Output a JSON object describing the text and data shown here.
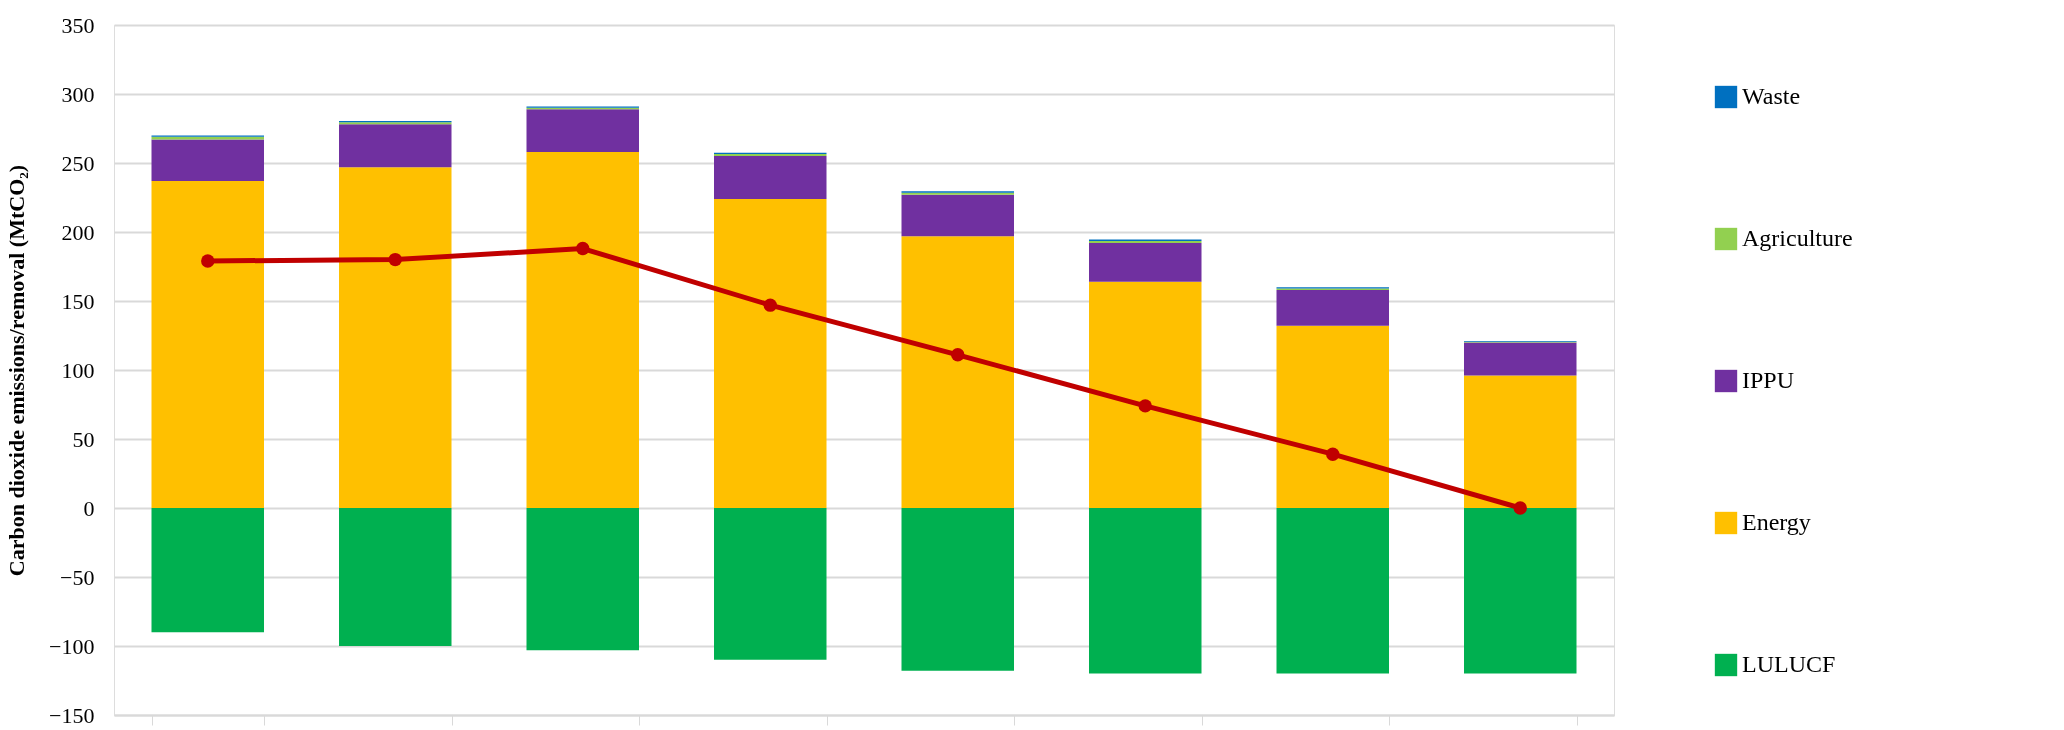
{
  "chart_data": {
    "type": "bar",
    "stacked": true,
    "ylabel": "Carbon dioxide emissions/removal (MtCO₂)",
    "categories": [
      null,
      null,
      null,
      null,
      null,
      null,
      null,
      null
    ],
    "ylim": [
      -150,
      350
    ],
    "yticks": [
      -150,
      -100,
      -50,
      0,
      50,
      100,
      150,
      200,
      250,
      300,
      350
    ],
    "grid": "y",
    "legend": "right",
    "tick_labels": "y",
    "series": [
      {
        "name": "LULUCF",
        "color": "#00b050",
        "values": [
          -90,
          -100,
          -103,
          -110,
          -118,
          -120,
          -120,
          -120
        ]
      },
      {
        "name": "Energy",
        "color": "#ffc000",
        "values": [
          237,
          247,
          258,
          224,
          197,
          164,
          132,
          96
        ]
      },
      {
        "name": "IPPU",
        "color": "#7030a0",
        "values": [
          30,
          31,
          31,
          31,
          30,
          28,
          26,
          24
        ]
      },
      {
        "name": "Agriculture",
        "color": "#92d050",
        "values": [
          2,
          1.5,
          1,
          1.5,
          1.5,
          1.5,
          1,
          0.5
        ]
      },
      {
        "name": "Waste",
        "color": "#0070c0",
        "values": [
          1,
          1,
          1,
          1,
          1,
          1,
          1,
          0.5
        ]
      },
      {
        "type": "line",
        "color": "#c00000",
        "marker": "circle",
        "line_style": "solid",
        "values": [
          179,
          180,
          188,
          147,
          111,
          74,
          39,
          0
        ]
      }
    ]
  }
}
